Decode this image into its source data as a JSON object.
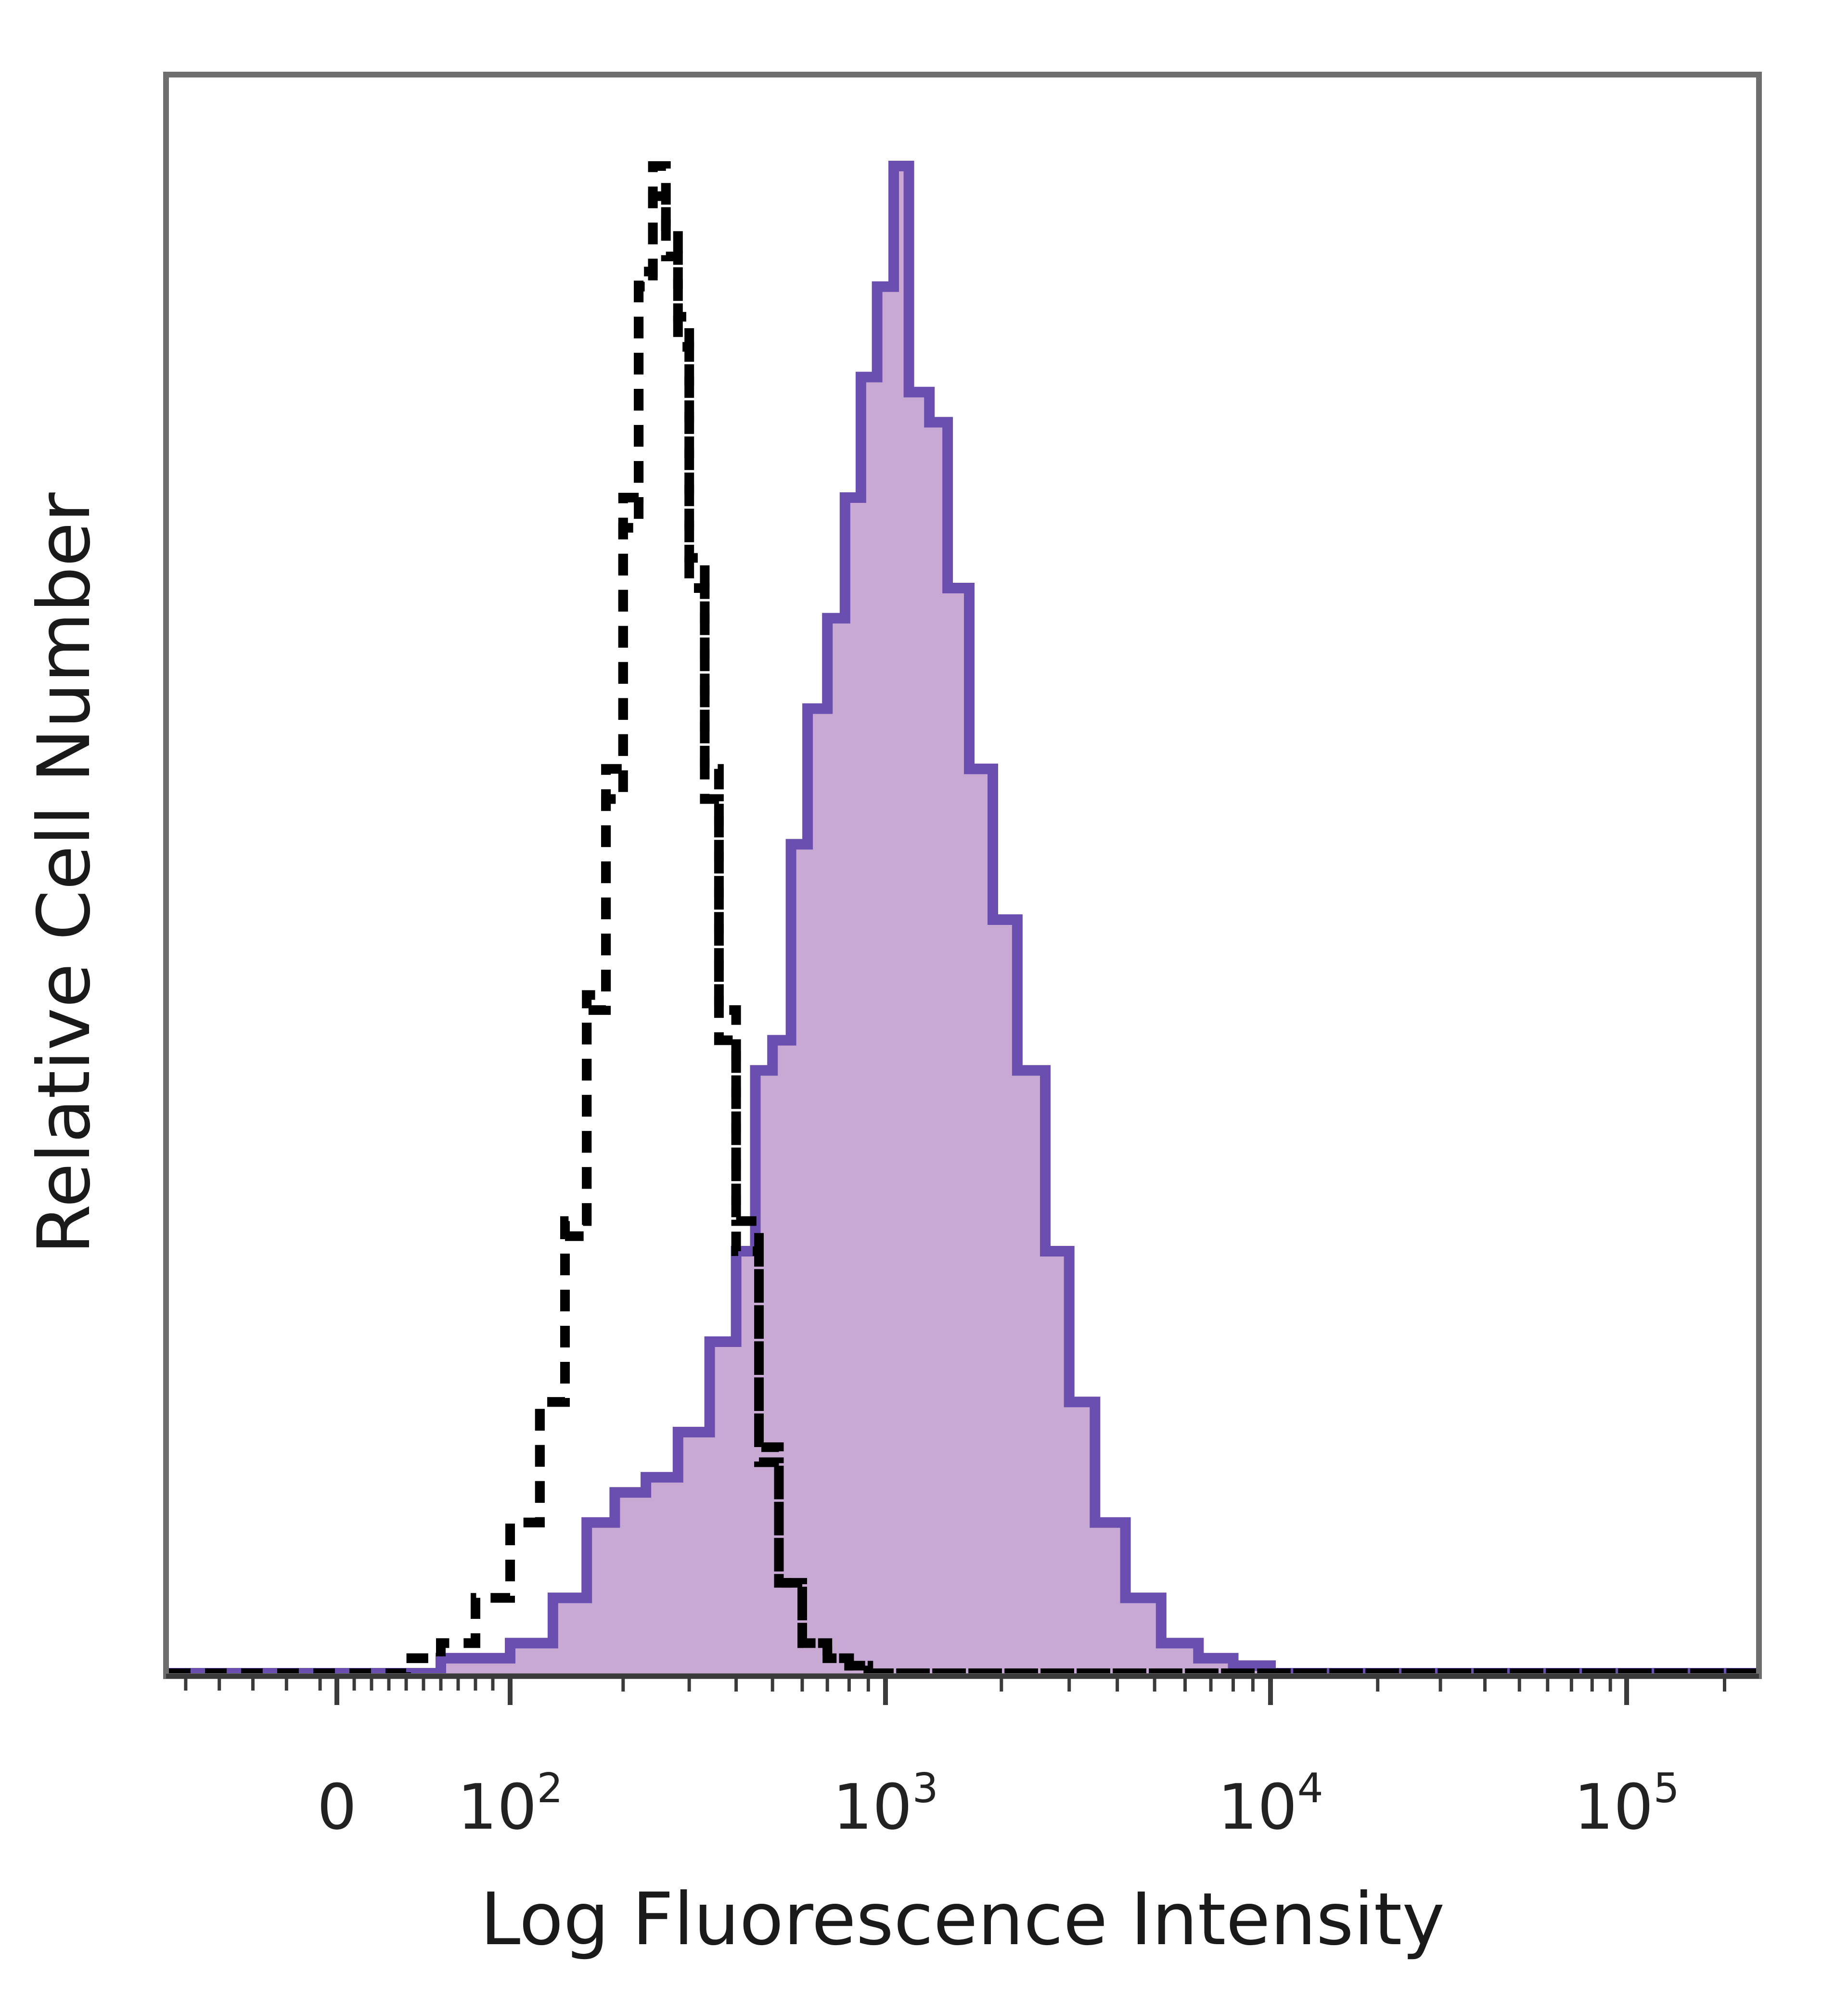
{
  "chart_data": {
    "type": "area",
    "xlabel": "Log Fluorescence Intensity",
    "ylabel": "Relative Cell Number",
    "x_scale": "biexponential (log above 10^2)",
    "xlim": [
      -100,
      250000
    ],
    "ylim": [
      0,
      100
    ],
    "grid": false,
    "legend": "none",
    "x_ticks": [
      {
        "value": 0,
        "base": "0",
        "exp": ""
      },
      {
        "value": 100,
        "base": "10",
        "exp": "2"
      },
      {
        "value": 1000,
        "base": "10",
        "exp": "3"
      },
      {
        "value": 10000,
        "base": "10",
        "exp": "4"
      },
      {
        "value": 100000,
        "base": "10",
        "exp": "5"
      }
    ],
    "series": [
      {
        "style": "solid-filled",
        "color": "#6a4fb0",
        "fill": "#c7a9d4",
        "x": [
          -100,
          0,
          60,
          100,
          130,
          160,
          190,
          230,
          280,
          340,
          400,
          450,
          500,
          560,
          620,
          700,
          780,
          860,
          950,
          1050,
          1150,
          1300,
          1450,
          1650,
          1900,
          2200,
          2600,
          3000,
          3500,
          4200,
          5200,
          6500,
          8000,
          10000,
          30000,
          100000,
          250000
        ],
        "y": [
          0,
          0,
          1,
          2,
          5,
          10,
          12,
          13,
          16,
          22,
          28,
          40,
          42,
          55,
          64,
          70,
          78,
          86,
          92,
          100,
          85,
          83,
          72,
          60,
          50,
          40,
          28,
          18,
          10,
          5,
          2,
          1,
          0.5,
          0,
          0,
          0,
          0
        ]
      },
      {
        "style": "dashed",
        "color": "#000000",
        "x": [
          -100,
          0,
          40,
          60,
          80,
          100,
          120,
          140,
          160,
          180,
          200,
          220,
          240,
          260,
          280,
          300,
          330,
          360,
          400,
          460,
          520,
          600,
          700,
          800,
          900,
          1000,
          2000,
          10000,
          100000,
          250000
        ],
        "y": [
          0,
          0,
          1,
          2,
          5,
          10,
          18,
          30,
          45,
          60,
          78,
          93,
          100,
          94,
          88,
          72,
          58,
          42,
          28,
          14,
          6,
          2,
          1,
          0.5,
          0,
          0,
          0,
          0,
          0,
          0
        ]
      },
      {
        "style": "dashed",
        "color": "#000000",
        "x": [
          -100,
          0,
          40,
          60,
          80,
          100,
          120,
          140,
          160,
          180,
          200,
          220,
          240,
          260,
          280,
          300,
          330,
          360,
          400,
          460,
          520,
          600,
          700,
          800,
          900,
          1000,
          2000,
          10000,
          100000,
          250000
        ],
        "y": [
          0,
          0,
          1,
          2,
          5,
          10,
          18,
          29,
          44,
          58,
          76,
          92,
          98,
          96,
          90,
          74,
          60,
          44,
          30,
          15,
          6,
          2,
          1,
          0.5,
          0,
          0,
          0,
          0,
          0,
          0
        ]
      }
    ]
  }
}
